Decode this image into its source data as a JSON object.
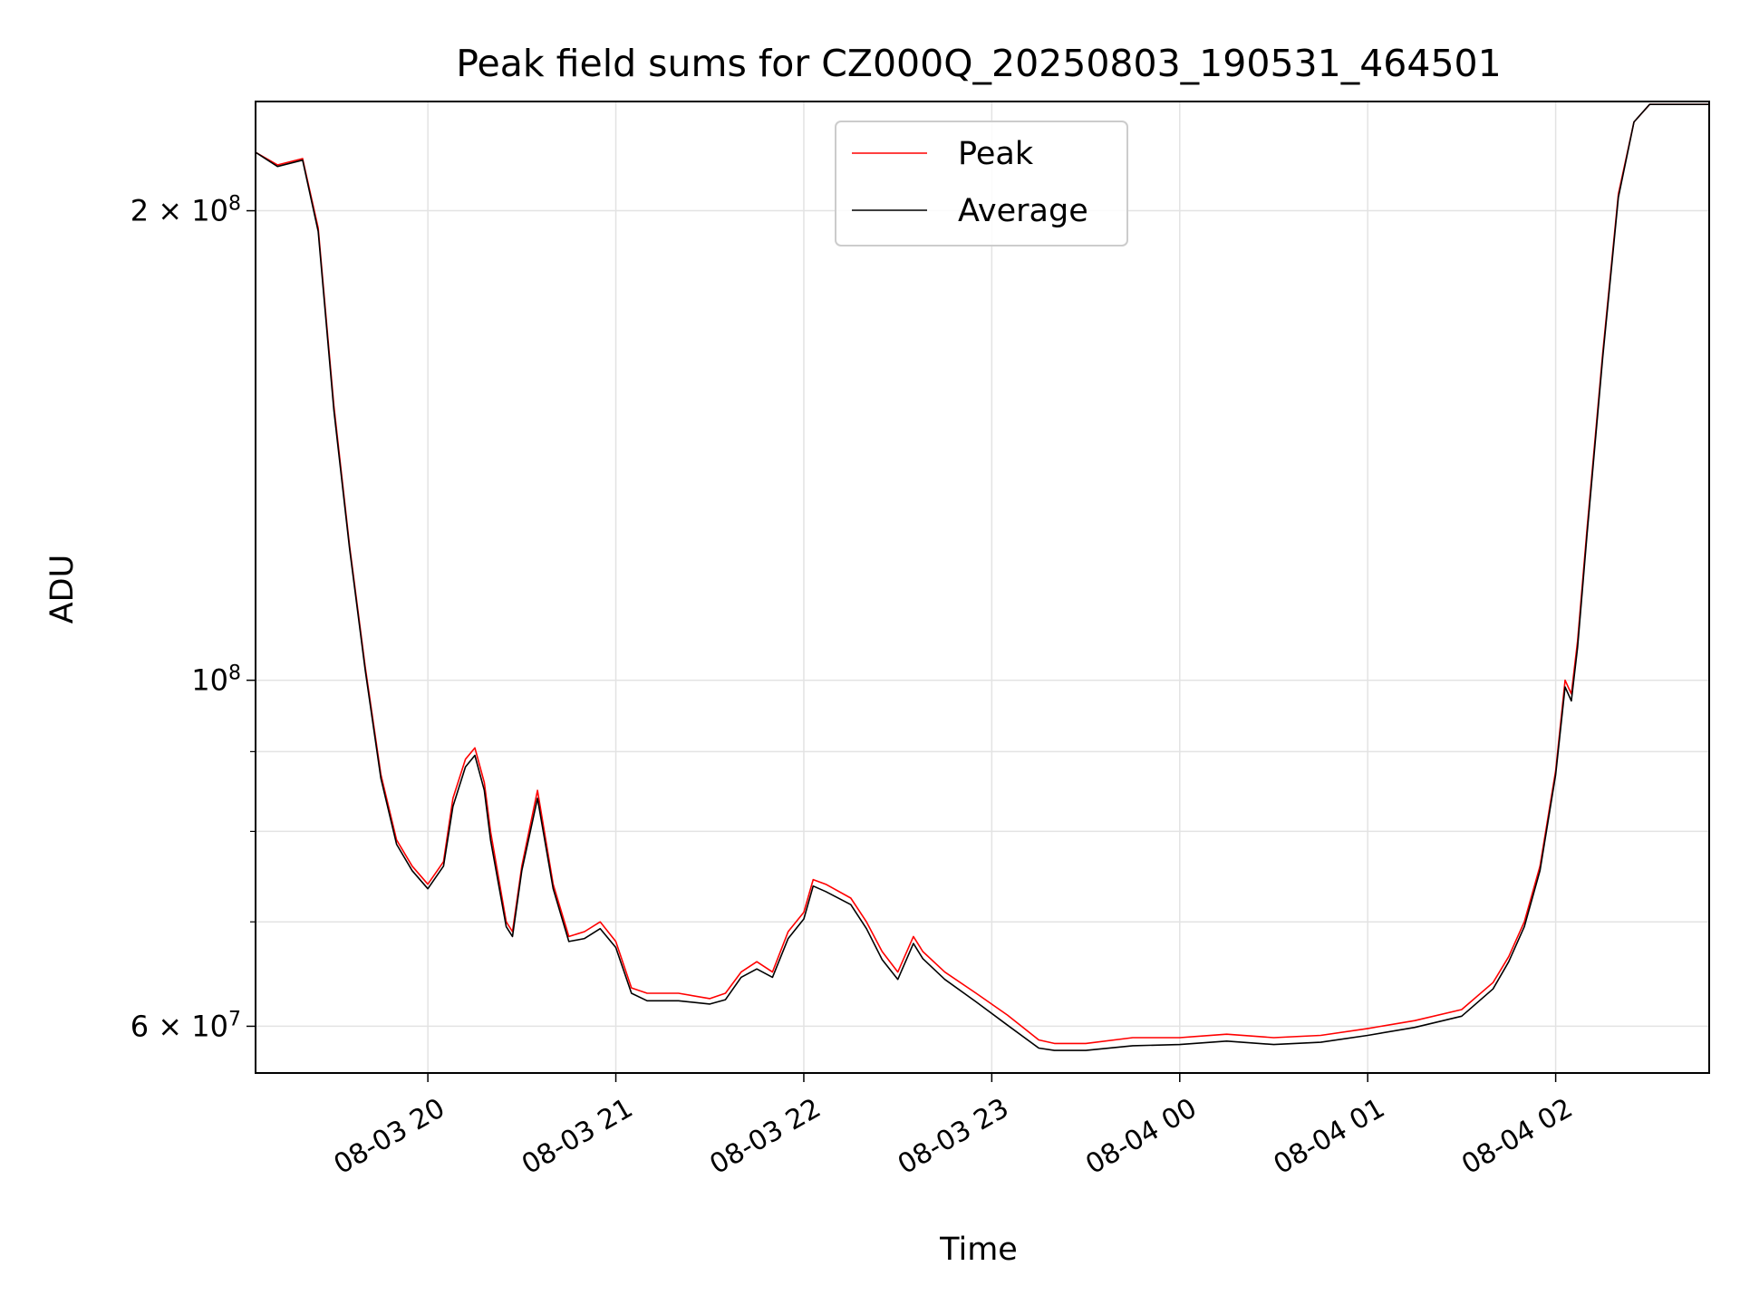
{
  "chart_data": {
    "type": "line",
    "title": "Peak field sums for CZ000Q_20250803_190531_464501",
    "xlabel": "Time",
    "ylabel": "ADU",
    "y_scale": "log",
    "grid": true,
    "legend_position": "upper center",
    "xlim": [
      "2025-08-03 19:05",
      "2025-08-04 02:49"
    ],
    "ylim": [
      56000000,
      235000000
    ],
    "x_ticks": [
      {
        "value": "2025-08-03 20:00",
        "label": "08-03 20"
      },
      {
        "value": "2025-08-03 21:00",
        "label": "08-03 21"
      },
      {
        "value": "2025-08-03 22:00",
        "label": "08-03 22"
      },
      {
        "value": "2025-08-03 23:00",
        "label": "08-03 23"
      },
      {
        "value": "2025-08-04 00:00",
        "label": "08-04 00"
      },
      {
        "value": "2025-08-04 01:00",
        "label": "08-04 01"
      },
      {
        "value": "2025-08-04 02:00",
        "label": "08-04 02"
      }
    ],
    "y_ticks": [
      {
        "value": 200000000,
        "base": "2 × 10",
        "exp": "8"
      },
      {
        "value": 100000000,
        "base": "10",
        "exp": "8"
      },
      {
        "value": 60000000,
        "base": "6 × 10",
        "exp": "7"
      }
    ],
    "y_minor_ticks": [
      70000000,
      80000000,
      90000000
    ],
    "series": [
      {
        "name": "Peak",
        "color": "#ff0000",
        "x": [
          "2025-08-03 19:05",
          "2025-08-03 19:12",
          "2025-08-03 19:20",
          "2025-08-03 19:25",
          "2025-08-03 19:30",
          "2025-08-03 19:35",
          "2025-08-03 19:40",
          "2025-08-03 19:45",
          "2025-08-03 19:50",
          "2025-08-03 19:55",
          "2025-08-03 20:00",
          "2025-08-03 20:05",
          "2025-08-03 20:08",
          "2025-08-03 20:12",
          "2025-08-03 20:15",
          "2025-08-03 20:18",
          "2025-08-03 20:20",
          "2025-08-03 20:25",
          "2025-08-03 20:27",
          "2025-08-03 20:30",
          "2025-08-03 20:35",
          "2025-08-03 20:40",
          "2025-08-03 20:45",
          "2025-08-03 20:50",
          "2025-08-03 20:55",
          "2025-08-03 21:00",
          "2025-08-03 21:05",
          "2025-08-03 21:10",
          "2025-08-03 21:20",
          "2025-08-03 21:30",
          "2025-08-03 21:35",
          "2025-08-03 21:40",
          "2025-08-03 21:45",
          "2025-08-03 21:50",
          "2025-08-03 21:55",
          "2025-08-03 22:00",
          "2025-08-03 22:03",
          "2025-08-03 22:07",
          "2025-08-03 22:15",
          "2025-08-03 22:20",
          "2025-08-03 22:25",
          "2025-08-03 22:30",
          "2025-08-03 22:35",
          "2025-08-03 22:38",
          "2025-08-03 22:45",
          "2025-08-03 22:55",
          "2025-08-03 23:05",
          "2025-08-03 23:15",
          "2025-08-03 23:20",
          "2025-08-03 23:30",
          "2025-08-03 23:45",
          "2025-08-04 00:00",
          "2025-08-04 00:15",
          "2025-08-04 00:30",
          "2025-08-04 00:45",
          "2025-08-04 01:00",
          "2025-08-04 01:15",
          "2025-08-04 01:30",
          "2025-08-04 01:40",
          "2025-08-04 01:45",
          "2025-08-04 01:50",
          "2025-08-04 01:55",
          "2025-08-04 02:00",
          "2025-08-04 02:03",
          "2025-08-04 02:05",
          "2025-08-04 02:07",
          "2025-08-04 02:10",
          "2025-08-04 02:15",
          "2025-08-04 02:20",
          "2025-08-04 02:25",
          "2025-08-04 02:30",
          "2025-08-04 02:35",
          "2025-08-04 02:40",
          "2025-08-04 02:45",
          "2025-08-04 02:49"
        ],
        "y": [
          218000000,
          214000000,
          216000000,
          195000000,
          150000000,
          122000000,
          102000000,
          87000000,
          79000000,
          76000000,
          74000000,
          76500000,
          84000000,
          89000000,
          90500000,
          86000000,
          80000000,
          70000000,
          69000000,
          76000000,
          85000000,
          74000000,
          68500000,
          69000000,
          70000000,
          68000000,
          63500000,
          63000000,
          63000000,
          62500000,
          63000000,
          65000000,
          66000000,
          65000000,
          69000000,
          71000000,
          74500000,
          74000000,
          72500000,
          70000000,
          67000000,
          65000000,
          68500000,
          67000000,
          65000000,
          63000000,
          61000000,
          58800000,
          58500000,
          58500000,
          59000000,
          59000000,
          59300000,
          59000000,
          59200000,
          59800000,
          60500000,
          61500000,
          64000000,
          66500000,
          70000000,
          76000000,
          87500000,
          100000000,
          98000000,
          106000000,
          125000000,
          162000000,
          205000000,
          228000000,
          234000000,
          234000000,
          234000000,
          234000000,
          234000000
        ]
      },
      {
        "name": "Average",
        "color": "#000000",
        "x": [
          "2025-08-03 19:05",
          "2025-08-03 19:12",
          "2025-08-03 19:20",
          "2025-08-03 19:25",
          "2025-08-03 19:30",
          "2025-08-03 19:35",
          "2025-08-03 19:40",
          "2025-08-03 19:45",
          "2025-08-03 19:50",
          "2025-08-03 19:55",
          "2025-08-03 20:00",
          "2025-08-03 20:05",
          "2025-08-03 20:08",
          "2025-08-03 20:12",
          "2025-08-03 20:15",
          "2025-08-03 20:18",
          "2025-08-03 20:20",
          "2025-08-03 20:25",
          "2025-08-03 20:27",
          "2025-08-03 20:30",
          "2025-08-03 20:35",
          "2025-08-03 20:40",
          "2025-08-03 20:45",
          "2025-08-03 20:50",
          "2025-08-03 20:55",
          "2025-08-03 21:00",
          "2025-08-03 21:05",
          "2025-08-03 21:10",
          "2025-08-03 21:20",
          "2025-08-03 21:30",
          "2025-08-03 21:35",
          "2025-08-03 21:40",
          "2025-08-03 21:45",
          "2025-08-03 21:50",
          "2025-08-03 21:55",
          "2025-08-03 22:00",
          "2025-08-03 22:03",
          "2025-08-03 22:07",
          "2025-08-03 22:15",
          "2025-08-03 22:20",
          "2025-08-03 22:25",
          "2025-08-03 22:30",
          "2025-08-03 22:35",
          "2025-08-03 22:38",
          "2025-08-03 22:45",
          "2025-08-03 22:55",
          "2025-08-03 23:05",
          "2025-08-03 23:15",
          "2025-08-03 23:20",
          "2025-08-03 23:30",
          "2025-08-03 23:45",
          "2025-08-04 00:00",
          "2025-08-04 00:15",
          "2025-08-04 00:30",
          "2025-08-04 00:45",
          "2025-08-04 01:00",
          "2025-08-04 01:15",
          "2025-08-04 01:30",
          "2025-08-04 01:40",
          "2025-08-04 01:45",
          "2025-08-04 01:50",
          "2025-08-04 01:55",
          "2025-08-04 02:00",
          "2025-08-04 02:03",
          "2025-08-04 02:05",
          "2025-08-04 02:07",
          "2025-08-04 02:10",
          "2025-08-04 02:15",
          "2025-08-04 02:20",
          "2025-08-04 02:25",
          "2025-08-04 02:30",
          "2025-08-04 02:35",
          "2025-08-04 02:40",
          "2025-08-04 02:45",
          "2025-08-04 02:49"
        ],
        "y": [
          218000000,
          213500000,
          215500000,
          194000000,
          149000000,
          121500000,
          101500000,
          86500000,
          78500000,
          75500000,
          73500000,
          76000000,
          83000000,
          88000000,
          89500000,
          85000000,
          79000000,
          69500000,
          68500000,
          75500000,
          84000000,
          73500000,
          68000000,
          68300000,
          69300000,
          67400000,
          63000000,
          62300000,
          62300000,
          62000000,
          62400000,
          64500000,
          65300000,
          64500000,
          68300000,
          70300000,
          73800000,
          73200000,
          71800000,
          69300000,
          66200000,
          64300000,
          67800000,
          66300000,
          64300000,
          62200000,
          60100000,
          58100000,
          57900000,
          57900000,
          58300000,
          58400000,
          58700000,
          58400000,
          58600000,
          59200000,
          59900000,
          60900000,
          63400000,
          66000000,
          69500000,
          75500000,
          87000000,
          99000000,
          97000000,
          105000000,
          124000000,
          161000000,
          204000000,
          228000000,
          234000000,
          234000000,
          234000000,
          234000000,
          234000000
        ]
      }
    ]
  }
}
